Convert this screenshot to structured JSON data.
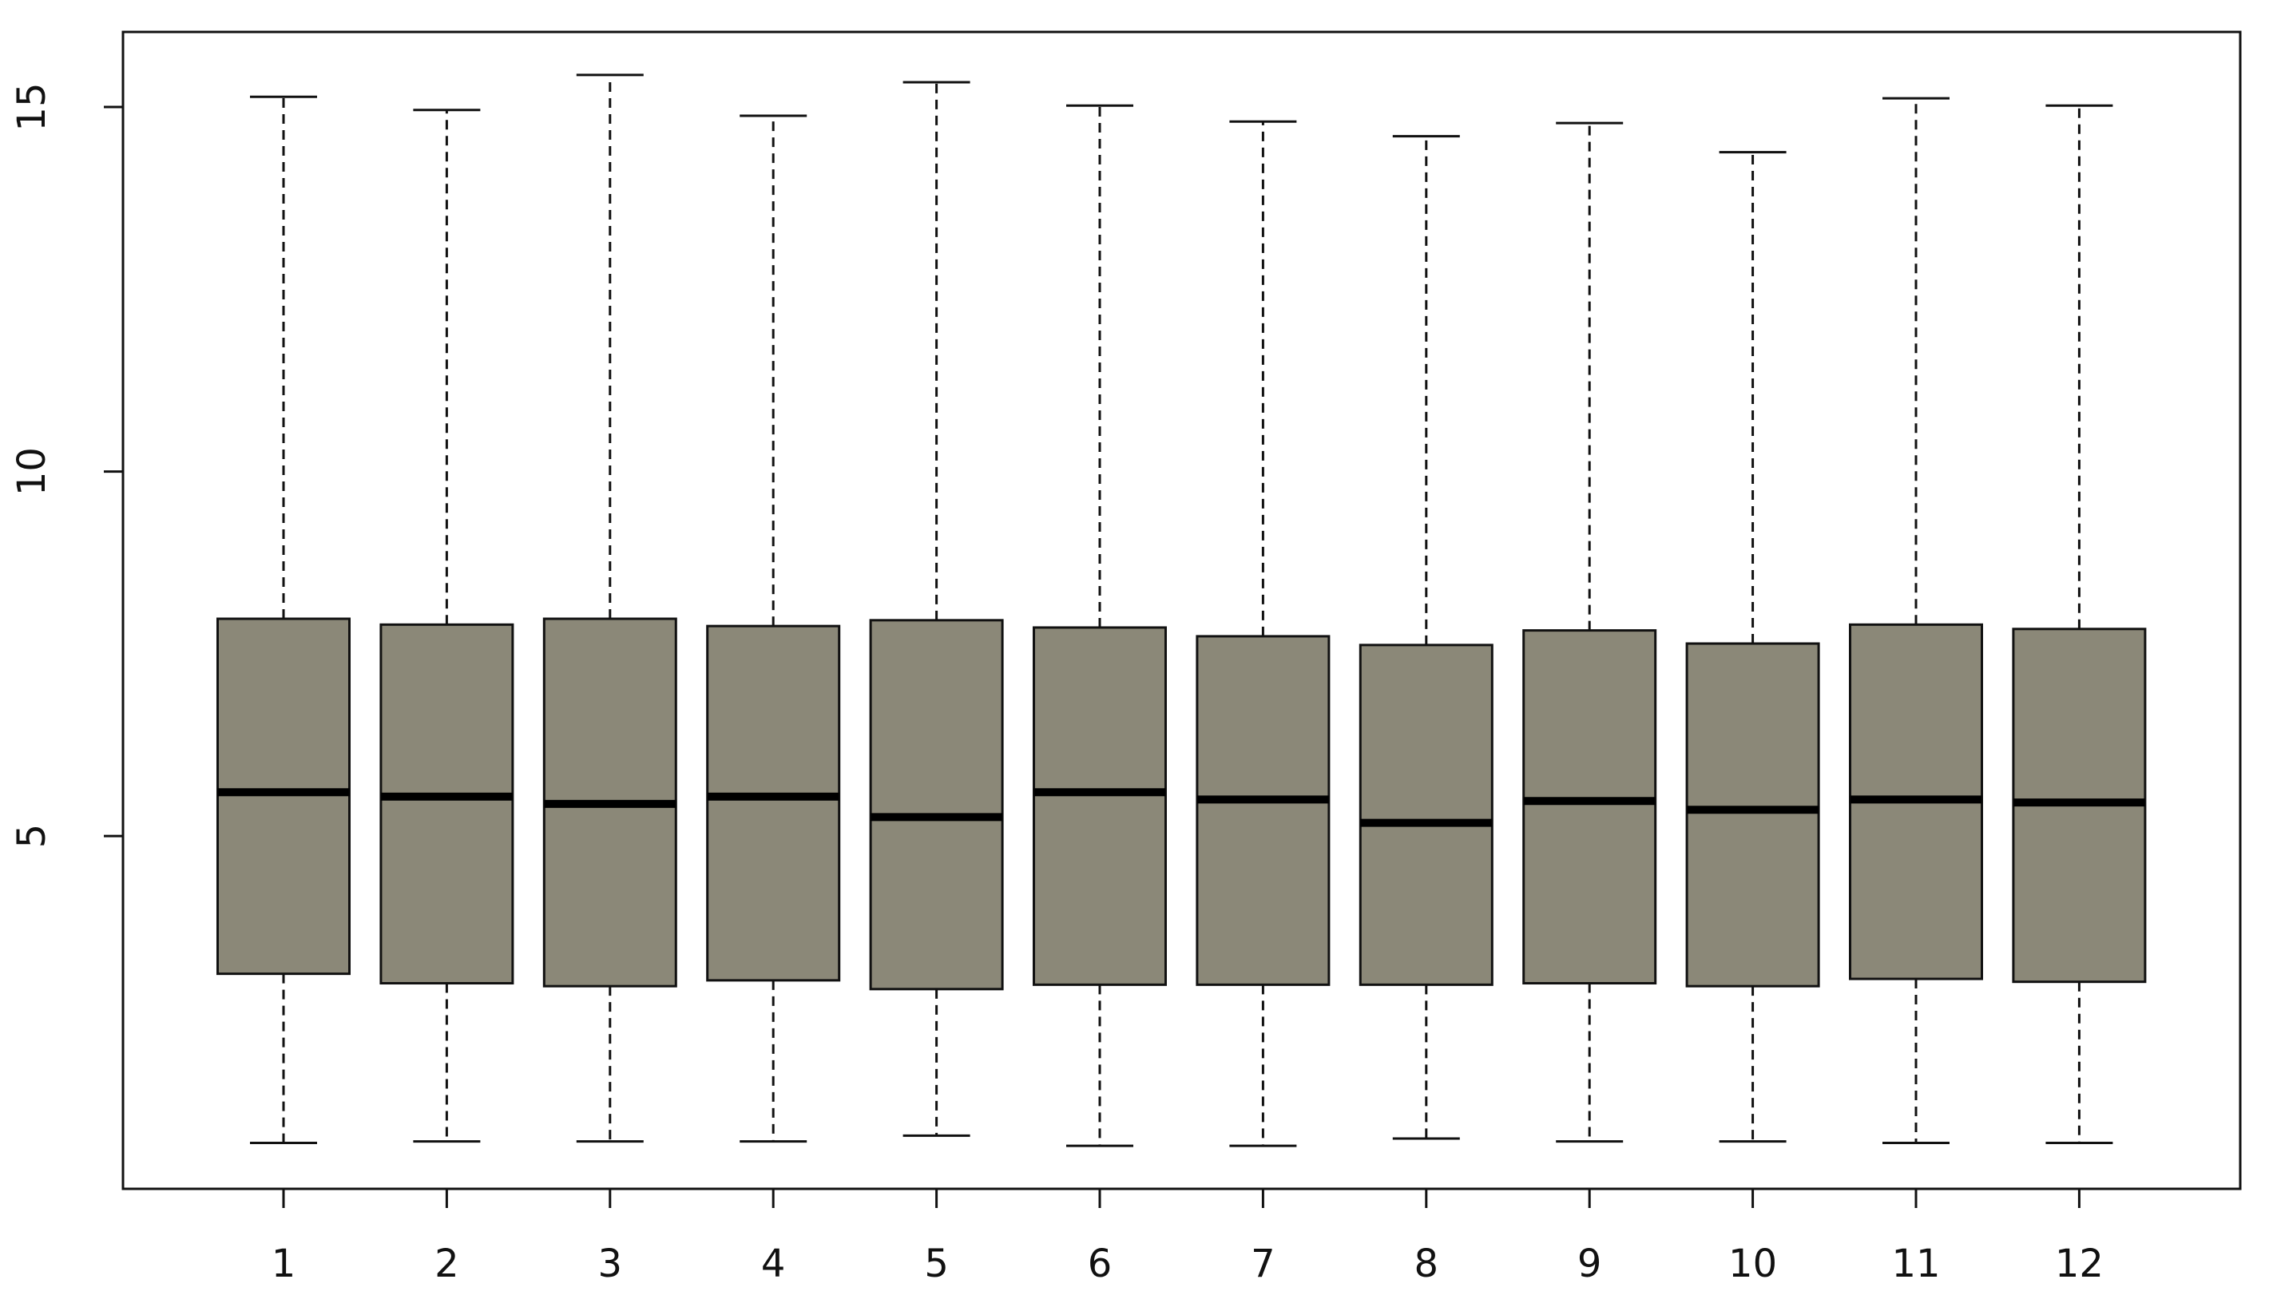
{
  "chart_data": {
    "type": "box",
    "categories": [
      "1",
      "2",
      "3",
      "4",
      "5",
      "6",
      "7",
      "8",
      "9",
      "10",
      "11",
      "12"
    ],
    "low": [
      0.79,
      0.81,
      0.81,
      0.81,
      0.89,
      0.75,
      0.75,
      0.85,
      0.81,
      0.81,
      0.79,
      0.79
    ],
    "q1": [
      3.11,
      2.98,
      2.94,
      3.02,
      2.9,
      2.96,
      2.96,
      2.96,
      2.98,
      2.94,
      3.04,
      3.0
    ],
    "median": [
      5.6,
      5.54,
      5.44,
      5.54,
      5.26,
      5.6,
      5.5,
      5.18,
      5.48,
      5.36,
      5.5,
      5.46
    ],
    "q3": [
      7.98,
      7.9,
      7.98,
      7.88,
      7.96,
      7.86,
      7.74,
      7.62,
      7.82,
      7.64,
      7.9,
      7.84
    ],
    "high": [
      15.14,
      14.96,
      15.44,
      14.88,
      15.34,
      15.02,
      14.8,
      14.6,
      14.78,
      14.38,
      15.12,
      15.02
    ],
    "color": "#8b8878",
    "ylim": [
      0.16,
      16.03
    ],
    "yticks": [
      5,
      10,
      15
    ]
  }
}
